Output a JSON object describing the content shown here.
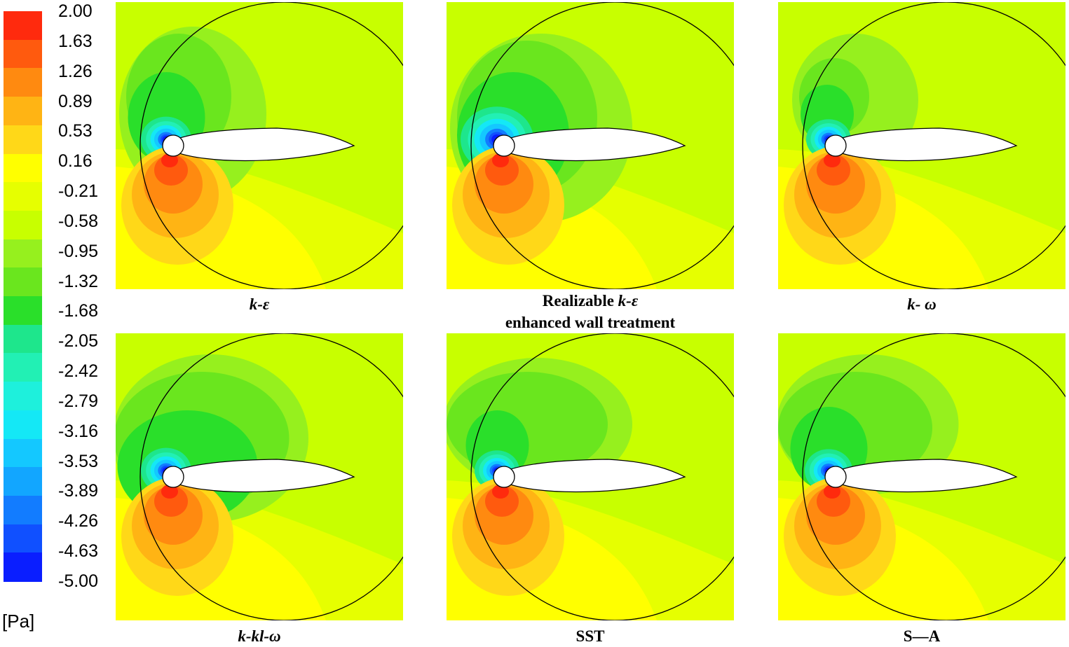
{
  "legend": {
    "unit": "[Pa]",
    "ticks": [
      "2.00",
      "1.63",
      "1.26",
      "0.89",
      "0.53",
      "0.16",
      "-0.21",
      "-0.58",
      "-0.95",
      "-1.32",
      "-1.68",
      "-2.05",
      "-2.42",
      "-2.79",
      "-3.16",
      "-3.53",
      "-3.89",
      "-4.26",
      "-4.63",
      "-5.00"
    ],
    "colors": [
      "#ff2a0d",
      "#ff5a0e",
      "#ff8a10",
      "#ffb414",
      "#ffd818",
      "#ffff00",
      "#e6ff00",
      "#c8ff00",
      "#96f01e",
      "#6ae61e",
      "#2adf2a",
      "#1ee68c",
      "#22f0b4",
      "#1ef0dc",
      "#14e8f6",
      "#14c8ff",
      "#12a6ff",
      "#127cff",
      "#1050ff",
      "#0a1eff"
    ]
  },
  "panels": [
    {
      "id": "k-eps",
      "caption_parts": [
        {
          "text": "k-ε",
          "italic": true
        }
      ],
      "caption_line2": "",
      "suction": "moderate"
    },
    {
      "id": "realizable",
      "caption_parts": [
        {
          "text": "Realizable ",
          "italic": false
        },
        {
          "text": "k-ε",
          "italic": true
        }
      ],
      "caption_line2": "enhanced wall treatment",
      "suction": "strong"
    },
    {
      "id": "k-omega",
      "caption_parts": [
        {
          "text": "k- ω",
          "italic": true
        }
      ],
      "caption_line2": "",
      "suction": "weak"
    },
    {
      "id": "k-kl-omega",
      "caption_parts": [
        {
          "text": "k-kl-ω",
          "italic": true
        }
      ],
      "caption_line2": "",
      "suction": "wide"
    },
    {
      "id": "sst",
      "caption_parts": [
        {
          "text": "SST",
          "italic": false
        }
      ],
      "caption_line2": "",
      "suction": "weak-wake"
    },
    {
      "id": "sa",
      "caption_parts": [
        {
          "text": "S—A",
          "italic": false
        }
      ],
      "caption_line2": "",
      "suction": "moderate-wide"
    }
  ]
}
